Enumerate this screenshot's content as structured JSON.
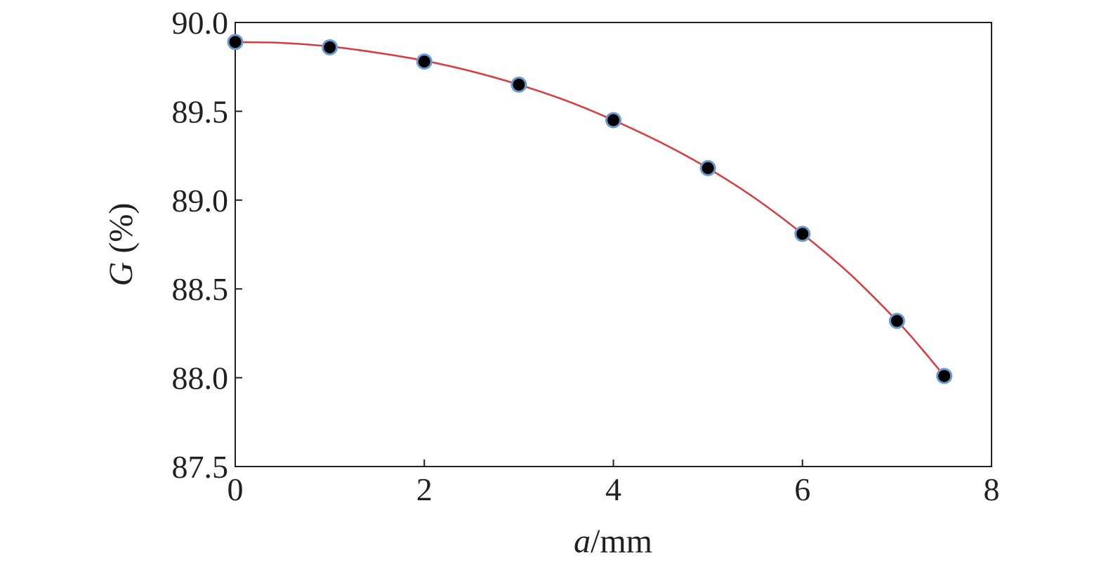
{
  "chart_data": {
    "type": "line",
    "title": "",
    "xlabel_var": "a",
    "xlabel_unit": "/mm",
    "ylabel_var": "G",
    "ylabel_unit": " (%)",
    "xlim": [
      0,
      8
    ],
    "ylim": [
      87.5,
      90.0
    ],
    "x_ticks": [
      0,
      2,
      4,
      6,
      8
    ],
    "x_tick_labels": [
      "0",
      "2",
      "4",
      "6",
      "8"
    ],
    "y_ticks": [
      87.5,
      88.0,
      88.5,
      89.0,
      89.5,
      90.0
    ],
    "y_tick_labels": [
      "87.5",
      "88.0",
      "88.5",
      "89.0",
      "89.5",
      "90.0"
    ],
    "grid": false,
    "legend": "none",
    "series": [
      {
        "kind": "scatter",
        "x": [
          0,
          1,
          2,
          3,
          4,
          5,
          6,
          7,
          7.5
        ],
        "y": [
          89.89,
          89.86,
          89.78,
          89.65,
          89.45,
          89.18,
          88.81,
          88.32,
          88.01
        ],
        "marker_color": "#000000",
        "marker_edge_color": "#6a9bd1"
      },
      {
        "kind": "fit-line",
        "x": [
          0,
          0.5,
          1,
          1.5,
          2,
          2.5,
          3,
          3.5,
          4,
          4.5,
          5,
          5.5,
          6,
          6.5,
          7,
          7.25,
          7.5
        ],
        "y": [
          89.89,
          89.885,
          89.865,
          89.83,
          89.785,
          89.725,
          89.65,
          89.56,
          89.45,
          89.325,
          89.18,
          89.01,
          88.81,
          88.585,
          88.32,
          88.17,
          88.01
        ],
        "color": "#d93a3f"
      }
    ]
  }
}
